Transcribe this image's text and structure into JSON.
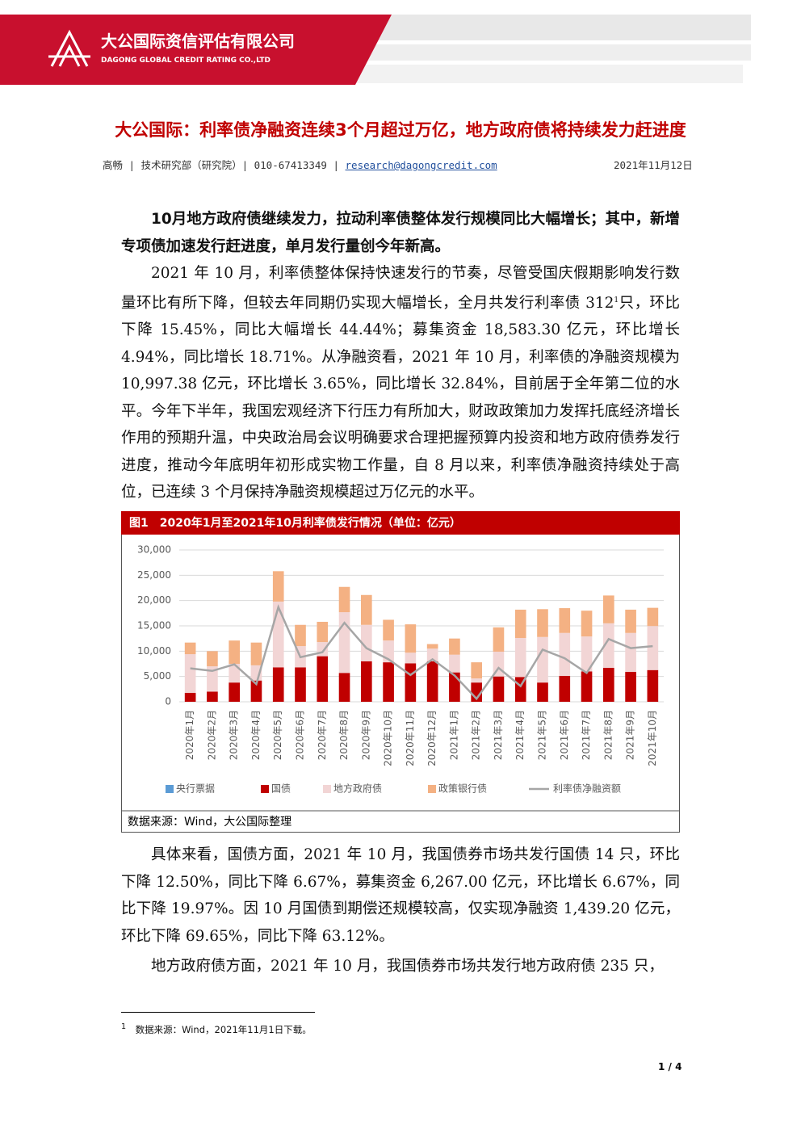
{
  "header": {
    "company_cn": "大公国际资信评估有限公司",
    "company_en": "DAGONG GLOBAL CREDIT RATING CO.,LTD"
  },
  "article": {
    "title": "大公国际：利率债净融资连续3个月超过万亿，地方政府债将持续发力赶进度",
    "byline": "高畅 | 技术研究部（研究院）| 010-67413349 |",
    "email": "research@dagongcredit.com",
    "date": "2021年11月12日"
  },
  "paragraphs": [
    {
      "text": "10月地方政府债继续发力，拉动利率债整体发行规模同比大幅增长；其中，新增专项债加速发行赶进度，单月发行量创今年新高。"
    },
    {
      "text": "2021 年 10 月，利率债整体保持快速发行的节奏，尽管受国庆假期影响发行数量环比有所下降，但较去年同期仍实现大幅增长，全月共发行利率债 312",
      "note": "1",
      "text_after": "只，环比下降 15.45%，同比大幅增长 44.44%；募集资金 18,583.30 亿元，环比增长 4.94%，同比增长 18.71%。从净融资看，2021 年 10 月，利率债的净融资规模为 10,997.38 亿元，环比增长 3.65%，同比增长 32.84%，目前居于全年第二位的水平。今年下半年，我国宏观经济下行压力有所加大，财政政策加力发挥托底经济增长作用的预期升温，中央政治局会议明确要求合理把握预算内投资和地方政府债券发行进度，推动今年底明年初形成实物工作量，自 8 月以来，利率债净融资持续处于高位，已连续 3 个月保持净融资规模超过万亿元的水平。"
    },
    {
      "text": "具体来看，国债方面，2021 年 10 月，我国债券市场共发行国债 14 只，环比下降 12.50%，同比下降 6.67%，募集资金 6,267.00 亿元，环比增长 6.67%，同比下降 19.97%。因 10 月国债到期偿还规模较高，仅实现净融资 1,439.20 亿元，环比下降 69.65%，同比下降 63.12%。"
    },
    {
      "text": "地方政府债方面，2021 年 10 月，我国债券市场共发行地方政府债 235 只，"
    }
  ],
  "figure": {
    "caption": "图1　2020年1月至2021年10月利率债发行情况（单位：亿元）",
    "source": "数据来源：Wind，大公国际整理"
  },
  "chart_data": {
    "type": "bar",
    "stacked": true,
    "categories": [
      "2020年1月",
      "2020年2月",
      "2020年3月",
      "2020年4月",
      "2020年5月",
      "2020年6月",
      "2020年7月",
      "2020年8月",
      "2020年9月",
      "2020年10月",
      "2020年11月",
      "2020年12月",
      "2021年1月",
      "2021年2月",
      "2021年3月",
      "2021年4月",
      "2021年5月",
      "2021年6月",
      "2021年7月",
      "2021年8月",
      "2021年9月",
      "2021年10月"
    ],
    "series": [
      {
        "name": "央行票据",
        "color": "#5b9bd5",
        "values": [
          0,
          0,
          0,
          0,
          0,
          0,
          0,
          0,
          0,
          0,
          0,
          0,
          0,
          0,
          0,
          0,
          0,
          0,
          0,
          0,
          0,
          0
        ]
      },
      {
        "name": "国债",
        "color": "#c00000",
        "values": [
          1750,
          2000,
          3800,
          4200,
          6800,
          6800,
          9000,
          5700,
          8000,
          7800,
          7600,
          8000,
          5800,
          3800,
          5000,
          4900,
          3800,
          5100,
          6000,
          6700,
          5900,
          6267
        ]
      },
      {
        "name": "地方政府债",
        "color": "#f2d5d5",
        "values": [
          7650,
          5000,
          3700,
          3000,
          13000,
          4200,
          2800,
          12000,
          7200,
          4300,
          2100,
          2500,
          3500,
          800,
          4900,
          7700,
          9000,
          8500,
          6900,
          8800,
          7700,
          8700
        ]
      },
      {
        "name": "政策银行债",
        "color": "#f4b183",
        "values": [
          2300,
          3000,
          4600,
          4500,
          6000,
          4200,
          4000,
          5000,
          5900,
          4100,
          5600,
          900,
          3200,
          3200,
          4800,
          5600,
          5500,
          4900,
          5100,
          5500,
          4600,
          3600
        ]
      },
      {
        "name": "利率债净融资额",
        "type": "line",
        "color": "#a6a6a6",
        "values": [
          6600,
          6100,
          7400,
          3500,
          18700,
          8800,
          9800,
          15600,
          10600,
          8400,
          5300,
          8400,
          5200,
          600,
          6700,
          3100,
          10300,
          8600,
          5700,
          12400,
          10600,
          10997
        ]
      }
    ],
    "ylim": [
      0,
      30000
    ],
    "yticks": [
      0,
      {
        "value": 5000,
        "label": "5,000"
      },
      {
        "value": 10000,
        "label": "10,000"
      },
      {
        "value": 15000,
        "label": "15,000"
      },
      {
        "value": 20000,
        "label": "20,000"
      },
      {
        "value": 25000,
        "label": "25,000"
      },
      {
        "value": 30000,
        "label": "30,000"
      }
    ],
    "grid": true,
    "legend": "bottom"
  },
  "footnote": {
    "marker": "1",
    "text": "数据来源：Wind，2021年11月1日下载。"
  },
  "page_number": "1 / 4"
}
